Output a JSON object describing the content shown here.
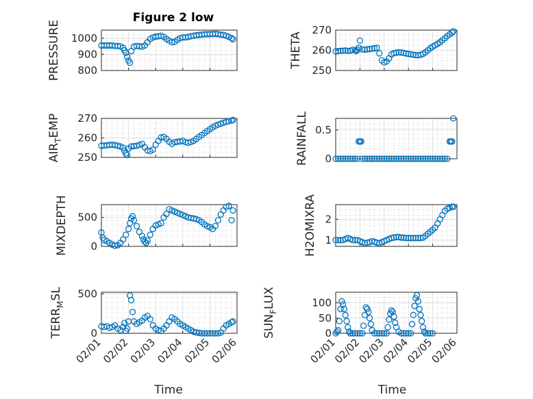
{
  "chart_data": [
    {
      "type": "scatter",
      "title": "Figure 2 low",
      "ylabel": "PRESSURE",
      "ylim": [
        800,
        1050
      ],
      "yticks": [
        800,
        900,
        1000
      ],
      "xlim": [
        0,
        5
      ],
      "marker_color": "#0072BD",
      "grid": true,
      "x": [
        0,
        0.1,
        0.2,
        0.3,
        0.4,
        0.5,
        0.6,
        0.7,
        0.8,
        0.85,
        0.9,
        0.95,
        1.0,
        1.05,
        1.1,
        1.2,
        1.3,
        1.4,
        1.5,
        1.6,
        1.7,
        1.8,
        1.9,
        2.0,
        2.1,
        2.2,
        2.3,
        2.4,
        2.5,
        2.6,
        2.7,
        2.8,
        2.9,
        3.0,
        3.1,
        3.2,
        3.3,
        3.4,
        3.5,
        3.6,
        3.7,
        3.8,
        3.9,
        4.0,
        4.1,
        4.2,
        4.3,
        4.4,
        4.5,
        4.6,
        4.7,
        4.8,
        4.85
      ],
      "y": [
        955,
        955,
        955,
        955,
        955,
        952,
        952,
        950,
        940,
        925,
        910,
        885,
        862,
        848,
        920,
        948,
        952,
        950,
        948,
        955,
        975,
        995,
        1005,
        1010,
        1012,
        1015,
        1008,
        995,
        985,
        975,
        978,
        990,
        1000,
        1005,
        1005,
        1008,
        1012,
        1015,
        1018,
        1020,
        1022,
        1024,
        1025,
        1025,
        1026,
        1027,
        1025,
        1022,
        1020,
        1015,
        1008,
        1000,
        993
      ]
    },
    {
      "type": "scatter",
      "ylabel": "THETA",
      "ylim": [
        250,
        270
      ],
      "yticks": [
        250,
        260,
        270
      ],
      "xlim": [
        0,
        5
      ],
      "marker_color": "#0072BD",
      "grid": true,
      "x": [
        0,
        0.1,
        0.2,
        0.3,
        0.4,
        0.5,
        0.6,
        0.7,
        0.8,
        0.85,
        0.9,
        0.95,
        1.0,
        1.1,
        1.2,
        1.3,
        1.4,
        1.5,
        1.6,
        1.7,
        1.8,
        1.9,
        2.0,
        2.1,
        2.2,
        2.3,
        2.4,
        2.5,
        2.6,
        2.7,
        2.8,
        2.9,
        3.0,
        3.1,
        3.2,
        3.3,
        3.4,
        3.5,
        3.6,
        3.7,
        3.8,
        3.9,
        4.0,
        4.1,
        4.2,
        4.3,
        4.4,
        4.5,
        4.6,
        4.7,
        4.8,
        4.85
      ],
      "y": [
        259.5,
        259.6,
        259.7,
        259.8,
        259.9,
        259.7,
        259.8,
        260.2,
        260.0,
        259.6,
        260.3,
        261.2,
        264.8,
        260.5,
        260.3,
        260.5,
        260.6,
        260.8,
        261.0,
        261.2,
        258.5,
        255.0,
        254.0,
        254.5,
        256.0,
        258.0,
        258.6,
        258.8,
        259.0,
        258.9,
        258.7,
        258.4,
        258.2,
        258.0,
        257.8,
        257.6,
        257.5,
        257.8,
        258.2,
        259.0,
        260.0,
        261.0,
        261.8,
        262.5,
        263.2,
        264.0,
        265.0,
        266.0,
        267.0,
        268.0,
        268.8,
        269.4
      ]
    },
    {
      "type": "scatter",
      "ylabel": "AIR_TEMP",
      "ylabel_main": "AIR",
      "ylabel_sub": "T",
      "ylabel_rest": "EMP",
      "ylim": [
        250,
        270
      ],
      "yticks": [
        250,
        260,
        270
      ],
      "xlim": [
        0,
        5
      ],
      "marker_color": "#0072BD",
      "grid": true,
      "x": [
        0,
        0.1,
        0.2,
        0.3,
        0.4,
        0.5,
        0.6,
        0.7,
        0.8,
        0.85,
        0.9,
        0.95,
        1.0,
        1.1,
        1.2,
        1.3,
        1.4,
        1.5,
        1.6,
        1.7,
        1.8,
        1.9,
        2.0,
        2.1,
        2.2,
        2.3,
        2.4,
        2.5,
        2.6,
        2.7,
        2.8,
        2.9,
        3.0,
        3.1,
        3.2,
        3.3,
        3.4,
        3.5,
        3.6,
        3.7,
        3.8,
        3.9,
        4.0,
        4.1,
        4.2,
        4.3,
        4.4,
        4.5,
        4.6,
        4.7,
        4.8,
        4.85
      ],
      "y": [
        256.0,
        256.1,
        256.2,
        256.4,
        256.5,
        256.3,
        256.0,
        255.6,
        255.0,
        253.5,
        252.0,
        251.2,
        254.5,
        255.6,
        255.8,
        256.0,
        256.4,
        256.9,
        255.2,
        253.6,
        253.2,
        254.0,
        256.5,
        258.5,
        260.2,
        260.5,
        259.5,
        258.0,
        257.0,
        257.8,
        258.0,
        258.2,
        258.5,
        257.8,
        257.5,
        257.9,
        258.5,
        259.5,
        260.5,
        261.5,
        262.5,
        263.5,
        264.5,
        265.4,
        266.2,
        266.8,
        267.3,
        267.8,
        268.2,
        268.6,
        268.9,
        269.2
      ]
    },
    {
      "type": "scatter",
      "ylabel": "RAINFALL",
      "ylim": [
        0,
        0.7
      ],
      "yticks": [
        0,
        0.5
      ],
      "xlim": [
        0,
        5
      ],
      "marker_color": "#0072BD",
      "grid": true,
      "x": [
        0,
        0.1,
        0.2,
        0.3,
        0.4,
        0.5,
        0.6,
        0.7,
        0.8,
        0.9,
        0.95,
        1.0,
        1.05,
        1.1,
        1.2,
        1.3,
        1.4,
        1.5,
        1.6,
        1.7,
        1.8,
        1.9,
        2.0,
        2.1,
        2.2,
        2.3,
        2.4,
        2.5,
        2.6,
        2.7,
        2.8,
        2.9,
        3.0,
        3.1,
        3.2,
        3.3,
        3.4,
        3.5,
        3.6,
        3.7,
        3.8,
        3.9,
        4.0,
        4.1,
        4.2,
        4.3,
        4.4,
        4.5,
        4.6,
        4.7,
        4.75,
        4.8,
        4.85
      ],
      "y": [
        0,
        0,
        0,
        0,
        0,
        0,
        0,
        0,
        0,
        0,
        0.3,
        0.3,
        0.3,
        0,
        0,
        0,
        0,
        0,
        0,
        0,
        0,
        0,
        0,
        0,
        0,
        0,
        0,
        0,
        0,
        0,
        0,
        0,
        0,
        0,
        0,
        0,
        0,
        0,
        0,
        0,
        0,
        0,
        0,
        0,
        0,
        0,
        0,
        0,
        0,
        0.3,
        0.3,
        0.3,
        0.7
      ]
    },
    {
      "type": "scatter",
      "ylabel": "MIXDEPTH",
      "ylim": [
        0,
        720
      ],
      "yticks": [
        0,
        500
      ],
      "xlim": [
        0,
        5
      ],
      "marker_color": "#0072BD",
      "grid": true,
      "x": [
        0,
        0.05,
        0.1,
        0.2,
        0.3,
        0.4,
        0.5,
        0.6,
        0.7,
        0.8,
        0.9,
        1.0,
        1.05,
        1.1,
        1.15,
        1.2,
        1.3,
        1.4,
        1.5,
        1.55,
        1.6,
        1.65,
        1.7,
        1.8,
        1.9,
        2.0,
        2.1,
        2.2,
        2.3,
        2.4,
        2.5,
        2.6,
        2.7,
        2.8,
        2.9,
        3.0,
        3.1,
        3.2,
        3.3,
        3.4,
        3.5,
        3.6,
        3.7,
        3.8,
        3.9,
        4.0,
        4.1,
        4.2,
        4.3,
        4.4,
        4.5,
        4.6,
        4.7,
        4.8,
        4.85
      ],
      "y": [
        240,
        150,
        110,
        90,
        60,
        30,
        10,
        20,
        60,
        120,
        200,
        300,
        400,
        480,
        520,
        450,
        350,
        250,
        180,
        120,
        80,
        60,
        100,
        200,
        300,
        360,
        380,
        400,
        500,
        560,
        640,
        620,
        600,
        580,
        560,
        540,
        520,
        500,
        490,
        480,
        470,
        450,
        420,
        380,
        350,
        330,
        300,
        350,
        450,
        550,
        620,
        680,
        700,
        450,
        620
      ]
    },
    {
      "type": "scatter",
      "ylabel": "H2OMIXRA",
      "ylim": [
        0.7,
        2.7
      ],
      "yticks": [
        1,
        2
      ],
      "xlim": [
        0,
        5
      ],
      "marker_color": "#0072BD",
      "grid": true,
      "x": [
        0,
        0.1,
        0.2,
        0.3,
        0.4,
        0.5,
        0.6,
        0.7,
        0.8,
        0.9,
        1.0,
        1.1,
        1.2,
        1.3,
        1.4,
        1.5,
        1.6,
        1.7,
        1.8,
        1.9,
        2.0,
        2.1,
        2.2,
        2.3,
        2.4,
        2.5,
        2.6,
        2.7,
        2.8,
        2.9,
        3.0,
        3.1,
        3.2,
        3.3,
        3.4,
        3.5,
        3.6,
        3.7,
        3.8,
        3.9,
        4.0,
        4.1,
        4.2,
        4.3,
        4.4,
        4.5,
        4.6,
        4.7,
        4.8,
        4.85
      ],
      "y": [
        1.0,
        1.0,
        1.0,
        1.0,
        1.05,
        1.1,
        1.05,
        1.0,
        1.0,
        1.0,
        0.95,
        0.9,
        0.85,
        0.88,
        0.9,
        0.95,
        0.92,
        0.88,
        0.85,
        0.9,
        0.95,
        1.0,
        1.05,
        1.1,
        1.12,
        1.15,
        1.15,
        1.12,
        1.12,
        1.1,
        1.1,
        1.1,
        1.1,
        1.1,
        1.1,
        1.1,
        1.12,
        1.2,
        1.3,
        1.4,
        1.5,
        1.6,
        1.8,
        2.0,
        2.2,
        2.4,
        2.5,
        2.55,
        2.6,
        2.6
      ]
    },
    {
      "type": "scatter",
      "ylabel": "TERR_MSL",
      "ylabel_main": "TERR",
      "ylabel_sub": "M",
      "ylabel_rest": "SL",
      "ylim": [
        0,
        520
      ],
      "yticks": [
        0,
        500
      ],
      "xlim": [
        0,
        5
      ],
      "marker_color": "#0072BD",
      "grid": true,
      "x": [
        0,
        0.1,
        0.2,
        0.3,
        0.4,
        0.5,
        0.6,
        0.7,
        0.8,
        0.85,
        0.9,
        0.95,
        1.0,
        1.05,
        1.1,
        1.15,
        1.2,
        1.3,
        1.4,
        1.5,
        1.6,
        1.7,
        1.8,
        1.9,
        2.0,
        2.1,
        2.2,
        2.3,
        2.4,
        2.5,
        2.6,
        2.7,
        2.8,
        2.9,
        3.0,
        3.1,
        3.2,
        3.3,
        3.4,
        3.5,
        3.6,
        3.7,
        3.8,
        3.9,
        4.0,
        4.1,
        4.2,
        4.3,
        4.4,
        4.5,
        4.6,
        4.7,
        4.8,
        4.85
      ],
      "y": [
        90,
        80,
        90,
        70,
        80,
        100,
        60,
        40,
        80,
        130,
        30,
        60,
        150,
        480,
        420,
        270,
        150,
        120,
        140,
        160,
        200,
        220,
        180,
        100,
        60,
        40,
        30,
        60,
        100,
        150,
        200,
        180,
        150,
        120,
        100,
        80,
        60,
        40,
        20,
        10,
        5,
        0,
        0,
        0,
        0,
        0,
        0,
        0,
        10,
        60,
        100,
        120,
        140,
        150
      ]
    },
    {
      "type": "scatter",
      "ylabel": "SUN_FLUX",
      "ylabel_main": "SUN",
      "ylabel_sub": "F",
      "ylabel_rest": "LUX",
      "ylim": [
        0,
        135
      ],
      "yticks": [
        0,
        50,
        100
      ],
      "xlim": [
        0,
        5
      ],
      "marker_color": "#0072BD",
      "grid": true,
      "x": [
        0,
        0.05,
        0.1,
        0.15,
        0.2,
        0.25,
        0.3,
        0.35,
        0.4,
        0.45,
        0.5,
        0.55,
        0.6,
        0.7,
        0.8,
        0.9,
        1.0,
        1.1,
        1.15,
        1.2,
        1.25,
        1.3,
        1.35,
        1.4,
        1.45,
        1.5,
        1.6,
        1.7,
        1.8,
        1.9,
        2.0,
        2.1,
        2.15,
        2.2,
        2.25,
        2.3,
        2.35,
        2.4,
        2.45,
        2.5,
        2.6,
        2.7,
        2.8,
        2.9,
        3.0,
        3.1,
        3.15,
        3.2,
        3.25,
        3.3,
        3.35,
        3.4,
        3.45,
        3.5,
        3.55,
        3.6,
        3.65,
        3.7,
        3.8,
        3.9,
        4.0
      ],
      "y": [
        0,
        5,
        10,
        40,
        80,
        105,
        95,
        80,
        60,
        40,
        20,
        5,
        0,
        0,
        0,
        0,
        0,
        0,
        25,
        60,
        85,
        80,
        70,
        50,
        30,
        10,
        0,
        0,
        0,
        0,
        0,
        0,
        20,
        45,
        65,
        75,
        70,
        55,
        35,
        20,
        5,
        0,
        0,
        0,
        0,
        0,
        30,
        60,
        90,
        115,
        125,
        105,
        80,
        60,
        40,
        20,
        5,
        0,
        0,
        0,
        0
      ]
    }
  ],
  "x_axis": {
    "ticks": [
      "02/01",
      "02/02",
      "02/03",
      "02/04",
      "02/05",
      "02/06"
    ],
    "label": "Time"
  }
}
